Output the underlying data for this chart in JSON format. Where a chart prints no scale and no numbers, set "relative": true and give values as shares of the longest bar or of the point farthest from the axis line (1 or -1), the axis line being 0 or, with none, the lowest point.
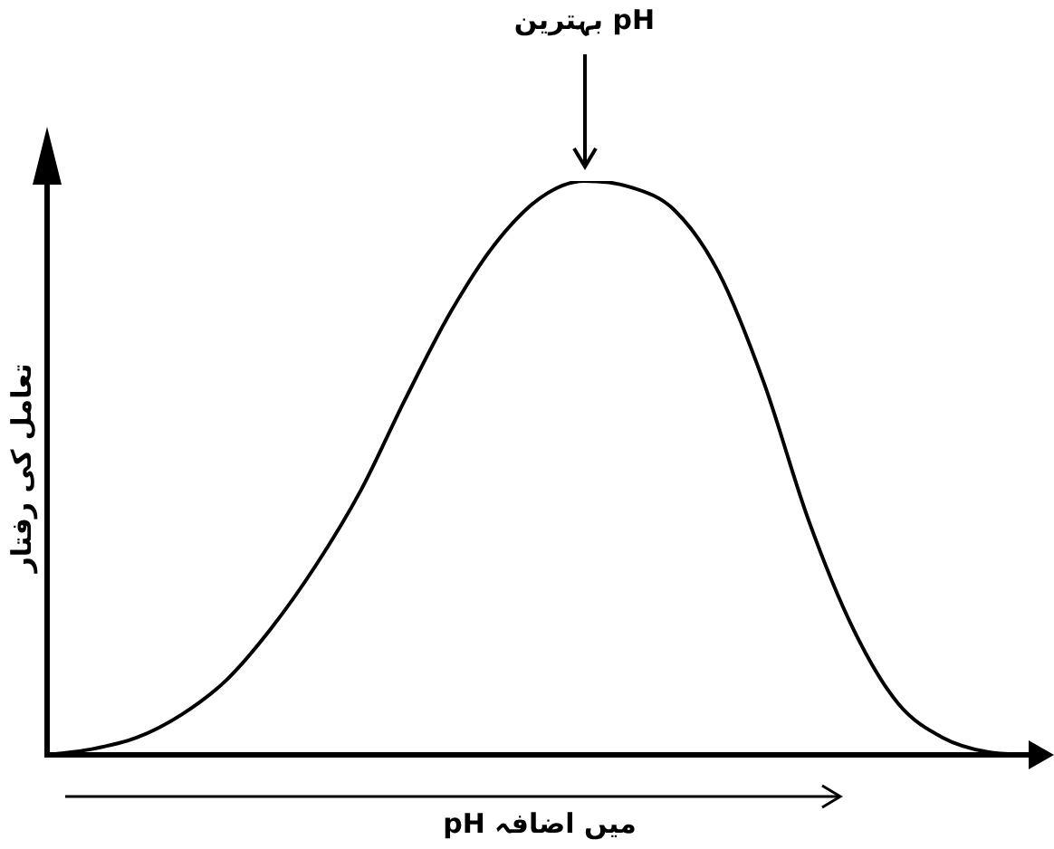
{
  "chart_data": {
    "type": "line",
    "relative": true,
    "color": "#000000",
    "marker": "none",
    "grid": false,
    "legend": false,
    "xlabel": "pH میں اضافہ",
    "ylabel": "تعامل کی رفتار",
    "annotations": [
      "بہترین pH"
    ],
    "categories": [
      null,
      null,
      null,
      null,
      null,
      null,
      null,
      null,
      null,
      null,
      null,
      null,
      null,
      null,
      null,
      null,
      null,
      null,
      null,
      null,
      null,
      null,
      null
    ],
    "values": [
      0,
      0.01,
      0.03,
      0.07,
      0.13,
      0.22,
      0.33,
      0.46,
      0.62,
      0.77,
      0.89,
      0.97,
      1.0,
      0.99,
      0.95,
      0.84,
      0.65,
      0.41,
      0.22,
      0.09,
      0.03,
      0.005,
      0
    ]
  }
}
